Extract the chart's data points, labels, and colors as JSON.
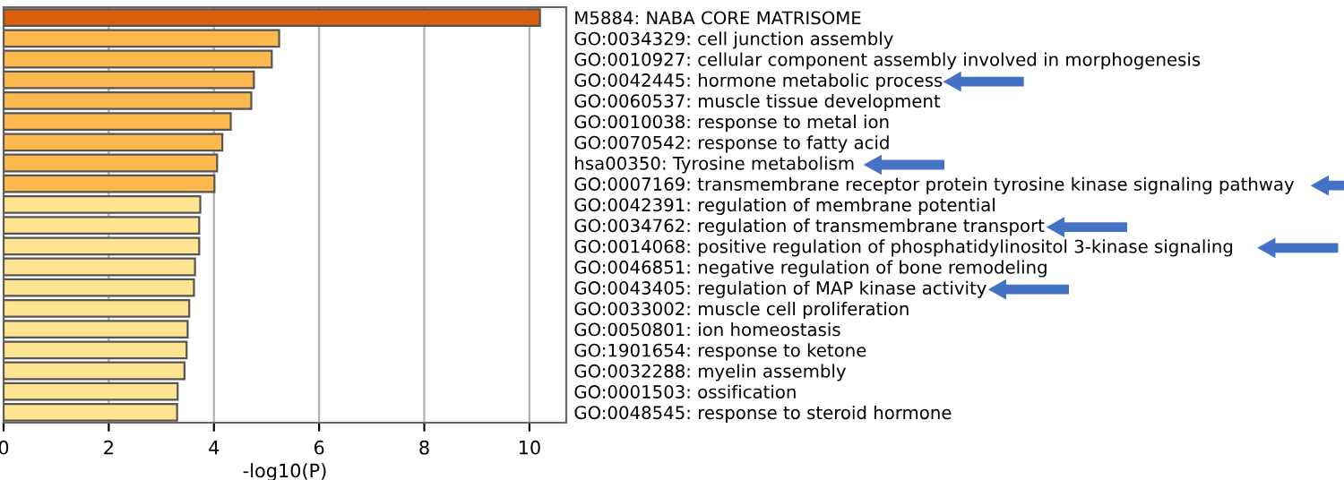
{
  "chart_data": {
    "type": "bar",
    "orientation": "horizontal",
    "xlabel": "-log10(P)",
    "categories": [
      "M5884: NABA CORE MATRISOME",
      "GO:0034329: cell junction assembly",
      "GO:0010927: cellular component assembly involved in morphogenesis",
      "GO:0042445: hormone metabolic process",
      "GO:0060537: muscle tissue development",
      "GO:0010038: response to metal ion",
      "GO:0070542: response to fatty acid",
      "hsa00350: Tyrosine metabolism",
      "GO:0007169: transmembrane receptor protein tyrosine kinase signaling pathway",
      "GO:0042391: regulation of membrane potential",
      "GO:0034762: regulation of transmembrane transport",
      "GO:0014068: positive regulation of phosphatidylinositol 3-kinase signaling",
      "GO:0046851: negative regulation of bone remodeling",
      "GO:0043405: regulation of MAP kinase activity",
      "GO:0033002: muscle cell proliferation",
      "GO:0050801: ion homeostasis",
      "GO:1901654: response to ketone",
      "GO:0032288: myelin assembly",
      "GO:0001503: ossification",
      "GO:0048545: response to steroid hormone"
    ],
    "values": [
      10.2,
      5.24,
      5.1,
      4.76,
      4.71,
      4.32,
      4.16,
      4.06,
      4.01,
      3.74,
      3.72,
      3.72,
      3.64,
      3.62,
      3.53,
      3.5,
      3.48,
      3.44,
      3.31,
      3.3
    ],
    "colors": [
      "#d95f0e",
      "#fdb94e",
      "#fdb94e",
      "#fdb94e",
      "#fdb94e",
      "#fdb94e",
      "#fdb94e",
      "#fdb94e",
      "#fdb94e",
      "#fee391",
      "#fee391",
      "#fee391",
      "#fee391",
      "#fee391",
      "#fee391",
      "#fee391",
      "#fee391",
      "#fee391",
      "#fee391",
      "#fee391"
    ],
    "xlim": [
      0,
      10.7
    ],
    "xticks": [
      0,
      2,
      4,
      6,
      8,
      10
    ],
    "grid": "x"
  }
}
